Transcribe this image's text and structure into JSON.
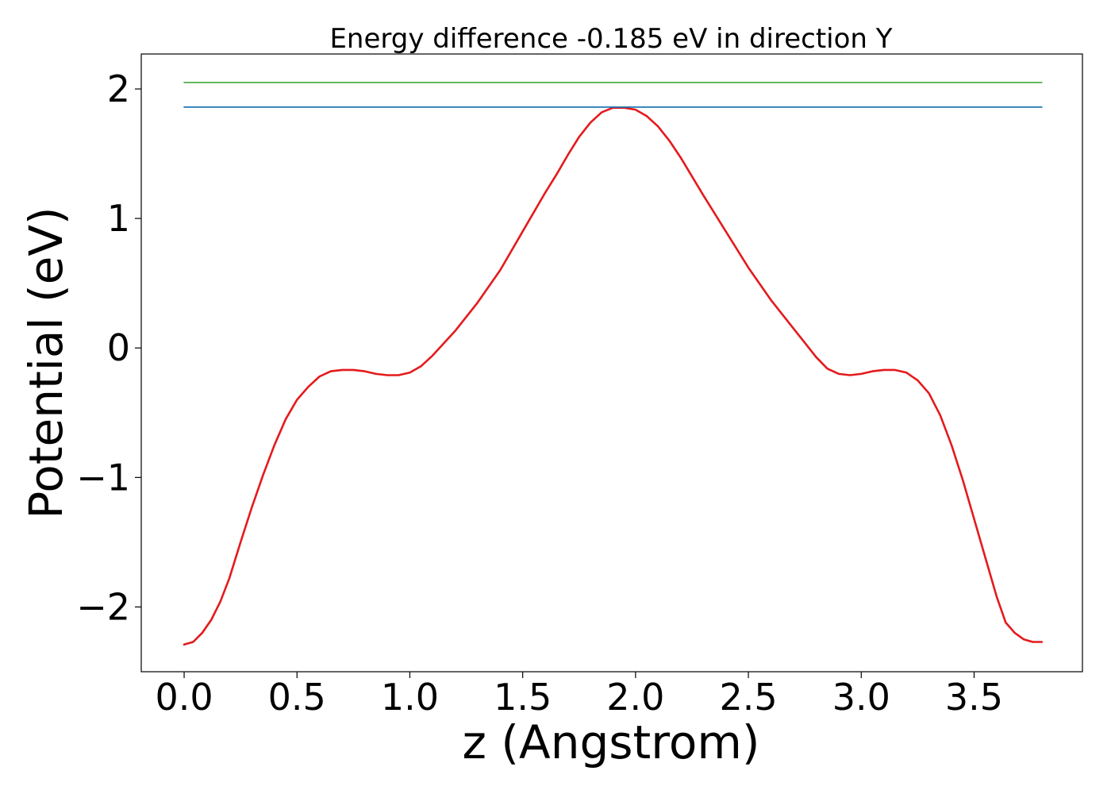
{
  "chart_data": {
    "type": "line",
    "title": "Energy difference -0.185 eV in direction Y",
    "xlabel": "z (Angstrom)",
    "ylabel": "Potential (eV)",
    "xlim": [
      -0.19,
      3.98
    ],
    "ylim": [
      -2.5,
      2.27
    ],
    "xticks": [
      0.0,
      0.5,
      1.0,
      1.5,
      2.0,
      2.5,
      3.0,
      3.5
    ],
    "xtick_labels": [
      "0.0",
      "0.5",
      "1.0",
      "1.5",
      "2.0",
      "2.5",
      "3.0",
      "3.5"
    ],
    "yticks": [
      -2,
      -1,
      0,
      1,
      2
    ],
    "ytick_labels": [
      "−2",
      "−1",
      "0",
      "1",
      "2"
    ],
    "grid": false,
    "series": [
      {
        "color": "#e41a1c",
        "x": [
          0.0,
          0.04,
          0.08,
          0.12,
          0.16,
          0.2,
          0.25,
          0.3,
          0.35,
          0.4,
          0.45,
          0.5,
          0.55,
          0.6,
          0.65,
          0.7,
          0.75,
          0.8,
          0.85,
          0.9,
          0.95,
          1.0,
          1.05,
          1.1,
          1.2,
          1.3,
          1.4,
          1.5,
          1.6,
          1.65,
          1.7,
          1.75,
          1.8,
          1.85,
          1.9,
          1.95,
          2.0,
          2.05,
          2.1,
          2.15,
          2.2,
          2.3,
          2.4,
          2.5,
          2.6,
          2.7,
          2.75,
          2.8,
          2.85,
          2.9,
          2.95,
          3.0,
          3.05,
          3.1,
          3.15,
          3.2,
          3.25,
          3.3,
          3.35,
          3.4,
          3.45,
          3.5,
          3.55,
          3.6,
          3.64,
          3.68,
          3.72,
          3.76,
          3.8
        ],
        "y": [
          -2.29,
          -2.27,
          -2.2,
          -2.1,
          -1.96,
          -1.78,
          -1.5,
          -1.23,
          -0.98,
          -0.75,
          -0.55,
          -0.4,
          -0.3,
          -0.22,
          -0.18,
          -0.17,
          -0.17,
          -0.18,
          -0.2,
          -0.21,
          -0.21,
          -0.19,
          -0.14,
          -0.06,
          0.13,
          0.35,
          0.6,
          0.9,
          1.2,
          1.34,
          1.49,
          1.63,
          1.74,
          1.82,
          1.855,
          1.855,
          1.84,
          1.79,
          1.71,
          1.6,
          1.47,
          1.18,
          0.9,
          0.62,
          0.37,
          0.15,
          0.04,
          -0.07,
          -0.16,
          -0.2,
          -0.21,
          -0.2,
          -0.18,
          -0.17,
          -0.17,
          -0.19,
          -0.25,
          -0.35,
          -0.52,
          -0.75,
          -1.02,
          -1.32,
          -1.62,
          -1.92,
          -2.12,
          -2.2,
          -2.25,
          -2.27,
          -2.27
        ]
      },
      {
        "color": "#1f77b4",
        "x": [
          0.0,
          3.8
        ],
        "y": [
          1.86,
          1.86
        ]
      },
      {
        "color": "#4daf4a",
        "x": [
          0.0,
          3.8
        ],
        "y": [
          2.05,
          2.05
        ]
      }
    ]
  }
}
